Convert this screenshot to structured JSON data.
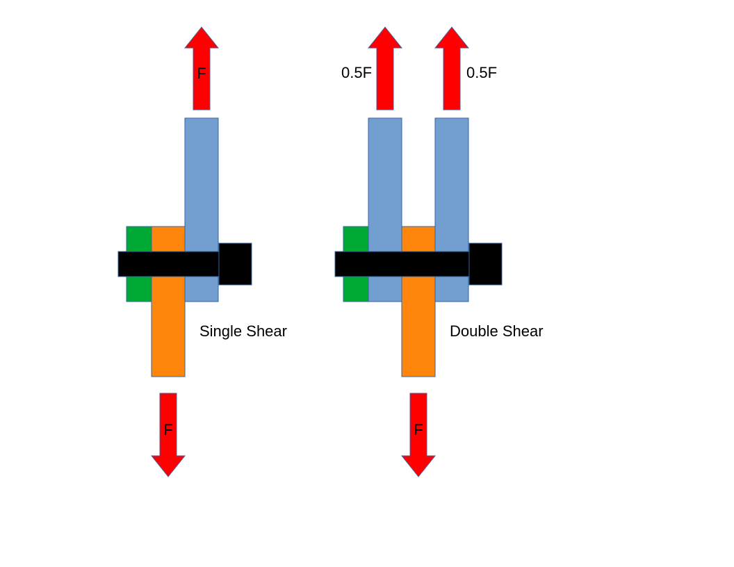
{
  "single_shear": {
    "title": "Single Shear",
    "load_top_label": "F",
    "load_bottom_label": "F"
  },
  "double_shear": {
    "title": "Double Shear",
    "load_top_left_label": "0.5F",
    "load_top_right_label": "0.5F",
    "load_bottom_label": "F"
  },
  "colors": {
    "arrow_fill": "#ff0000",
    "arrow_stroke": "#4a5fa0",
    "plate_blue": "#729fcf",
    "plate_orange": "#ff860d",
    "washer_green": "#00a933",
    "bolt_black": "#000000",
    "part_stroke": "#3465a4"
  }
}
